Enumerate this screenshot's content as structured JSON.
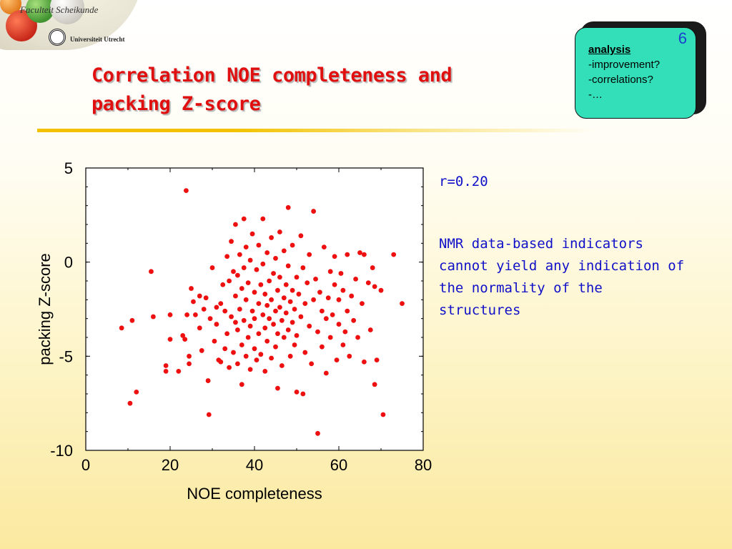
{
  "header": {
    "faculty": "Faculteit Scheikunde",
    "university": "Universiteit Utrecht"
  },
  "title": {
    "line1": "Correlation NOE completeness and",
    "line2": "packing Z-score"
  },
  "note": {
    "number": "6",
    "items": [
      "analysis",
      "-improvement?",
      "-correlations?",
      "-…"
    ]
  },
  "text": {
    "r_value": "r=0.20",
    "body_lines": [
      "NMR data-based indicators",
      "cannot yield any indication of",
      "the normality of the",
      "structures"
    ]
  },
  "colors": {
    "title": "#e01010",
    "points": "#ee1010",
    "body_text": "#1010c8",
    "note_bg": "#33dfb8"
  },
  "chart_data": {
    "type": "scatter",
    "xlabel": "NOE completeness",
    "ylabel": "packing Z-score",
    "xlim": [
      0,
      80
    ],
    "ylim": [
      -10,
      5
    ],
    "xticks": [
      "0",
      "20",
      "40",
      "60",
      "80"
    ],
    "yticks": [
      "5",
      "0",
      "-5",
      "-10"
    ],
    "grid": false,
    "series": [
      {
        "values": [
          [
            8.5,
            -3.5
          ],
          [
            10.5,
            -7.5
          ],
          [
            11,
            -3.1
          ],
          [
            12,
            -6.9
          ],
          [
            15.5,
            -0.5
          ],
          [
            16,
            -2.9
          ],
          [
            19,
            -5.5
          ],
          [
            19,
            -5.8
          ],
          [
            20,
            -4.1
          ],
          [
            20,
            -2.8
          ],
          [
            22,
            -5.8
          ],
          [
            23,
            -3.9
          ],
          [
            23.5,
            -4.1
          ],
          [
            23.8,
            3.8
          ],
          [
            24,
            -2.8
          ],
          [
            24.5,
            -5.4
          ],
          [
            24.5,
            -5.0
          ],
          [
            25,
            -1.4
          ],
          [
            25.5,
            -2.1
          ],
          [
            26,
            -2.8
          ],
          [
            27,
            -3.5
          ],
          [
            27.5,
            -4.7
          ],
          [
            27,
            -1.8
          ],
          [
            28,
            -2.5
          ],
          [
            28.5,
            -1.9
          ],
          [
            29,
            -6.3
          ],
          [
            29.2,
            -8.1
          ],
          [
            29.5,
            -3.0
          ],
          [
            30,
            -0.3
          ],
          [
            30.5,
            -4.2
          ],
          [
            31,
            -3.3
          ],
          [
            31,
            -2.4
          ],
          [
            31.5,
            -5.2
          ],
          [
            32,
            -5.3
          ],
          [
            32,
            -2.2
          ],
          [
            32.5,
            -1.2
          ],
          [
            33,
            -4.6
          ],
          [
            33,
            -2.6
          ],
          [
            33.5,
            -3.8
          ],
          [
            33.5,
            0.3
          ],
          [
            34,
            -1.0
          ],
          [
            34,
            -5.6
          ],
          [
            34.5,
            -2.9
          ],
          [
            34.5,
            1.1
          ],
          [
            35,
            -4.8
          ],
          [
            35,
            -0.5
          ],
          [
            35.5,
            -3.2
          ],
          [
            35.5,
            -1.8
          ],
          [
            35.5,
            2.0
          ],
          [
            36,
            -5.4
          ],
          [
            36,
            -3.6
          ],
          [
            36,
            -0.7
          ],
          [
            36.5,
            -2.5
          ],
          [
            36.5,
            0.4
          ],
          [
            37,
            -4.4
          ],
          [
            37,
            -1.4
          ],
          [
            37,
            -6.5
          ],
          [
            37.5,
            -3.1
          ],
          [
            37.5,
            -0.3
          ],
          [
            37.5,
            2.3
          ],
          [
            38,
            -5.0
          ],
          [
            38,
            -2.0
          ],
          [
            38,
            0.8
          ],
          [
            38.5,
            -4.0
          ],
          [
            38.5,
            -1.1
          ],
          [
            39,
            -3.4
          ],
          [
            39,
            -5.7
          ],
          [
            39,
            0.1
          ],
          [
            39.5,
            -2.6
          ],
          [
            39.5,
            1.5
          ],
          [
            40,
            -4.6
          ],
          [
            40,
            -1.6
          ],
          [
            40,
            -3.0
          ],
          [
            40.5,
            -0.4
          ],
          [
            40.5,
            -5.2
          ],
          [
            41,
            -2.2
          ],
          [
            41,
            0.9
          ],
          [
            41,
            -3.8
          ],
          [
            41.5,
            -1.2
          ],
          [
            41.5,
            -4.9
          ],
          [
            42,
            -2.8
          ],
          [
            42,
            -0.1
          ],
          [
            42,
            2.3
          ],
          [
            42.5,
            -3.5
          ],
          [
            42.5,
            -1.7
          ],
          [
            42.5,
            -5.8
          ],
          [
            43,
            -2.3
          ],
          [
            43,
            0.5
          ],
          [
            43,
            -4.2
          ],
          [
            43.5,
            -1.0
          ],
          [
            43.5,
            -3.0
          ],
          [
            44,
            -2.0
          ],
          [
            44,
            -5.1
          ],
          [
            44,
            1.3
          ],
          [
            44.5,
            -3.3
          ],
          [
            44.5,
            -0.6
          ],
          [
            45,
            -2.6
          ],
          [
            45,
            -4.5
          ],
          [
            45,
            0.2
          ],
          [
            45.5,
            -1.5
          ],
          [
            45.5,
            -3.8
          ],
          [
            45.5,
            -6.7
          ],
          [
            46,
            -2.4
          ],
          [
            46,
            -0.8
          ],
          [
            46,
            1.6
          ],
          [
            46.5,
            -3.1
          ],
          [
            46.5,
            -5.5
          ],
          [
            47,
            -1.9
          ],
          [
            47,
            0.6
          ],
          [
            47,
            -4.0
          ],
          [
            47.5,
            -2.7
          ],
          [
            47.5,
            -1.2
          ],
          [
            48,
            -3.6
          ],
          [
            48,
            2.9
          ],
          [
            48,
            -0.2
          ],
          [
            48.5,
            -2.1
          ],
          [
            48.5,
            -5.0
          ],
          [
            49,
            -1.5
          ],
          [
            49,
            0.9
          ],
          [
            49,
            -3.2
          ],
          [
            49.5,
            -2.5
          ],
          [
            49.5,
            -4.4
          ],
          [
            50,
            -0.8
          ],
          [
            50,
            -6.9
          ],
          [
            50,
            -3.9
          ],
          [
            50.5,
            -1.7
          ],
          [
            51,
            -2.9
          ],
          [
            51,
            1.4
          ],
          [
            51.5,
            -0.3
          ],
          [
            51.5,
            -7.0
          ],
          [
            52,
            -4.8
          ],
          [
            52,
            -2.2
          ],
          [
            52.5,
            -1.1
          ],
          [
            53,
            -3.4
          ],
          [
            53,
            0.4
          ],
          [
            53.5,
            -5.4
          ],
          [
            54,
            -2.0
          ],
          [
            54,
            2.7
          ],
          [
            54.5,
            -0.9
          ],
          [
            55,
            -3.7
          ],
          [
            55,
            -9.1
          ],
          [
            55.5,
            -1.6
          ],
          [
            56,
            -4.5
          ],
          [
            56,
            -2.6
          ],
          [
            56.5,
            0.8
          ],
          [
            57,
            -3.0
          ],
          [
            57,
            -5.9
          ],
          [
            57.5,
            -1.9
          ],
          [
            58,
            -0.5
          ],
          [
            58,
            -4.0
          ],
          [
            58.5,
            -2.8
          ],
          [
            59,
            -1.2
          ],
          [
            59,
            0.3
          ],
          [
            59.5,
            -5.2
          ],
          [
            60,
            -3.3
          ],
          [
            60,
            -2.0
          ],
          [
            60.5,
            -0.6
          ],
          [
            61,
            -4.4
          ],
          [
            61,
            -1.5
          ],
          [
            61.5,
            -3.7
          ],
          [
            62,
            0.4
          ],
          [
            62,
            -2.6
          ],
          [
            62.5,
            -5.0
          ],
          [
            63,
            -1.8
          ],
          [
            63.5,
            -3.1
          ],
          [
            64,
            -0.9
          ],
          [
            64.5,
            -4.0
          ],
          [
            65,
            0.5
          ],
          [
            65.5,
            -2.2
          ],
          [
            66,
            -5.3
          ],
          [
            66,
            0.4
          ],
          [
            67,
            -1.1
          ],
          [
            67.5,
            -3.6
          ],
          [
            68,
            -0.3
          ],
          [
            68.5,
            -1.3
          ],
          [
            68.5,
            -6.5
          ],
          [
            69,
            -5.2
          ],
          [
            70,
            -1.5
          ],
          [
            70.5,
            -8.1
          ],
          [
            73,
            0.4
          ],
          [
            75,
            -2.2
          ]
        ]
      }
    ]
  }
}
